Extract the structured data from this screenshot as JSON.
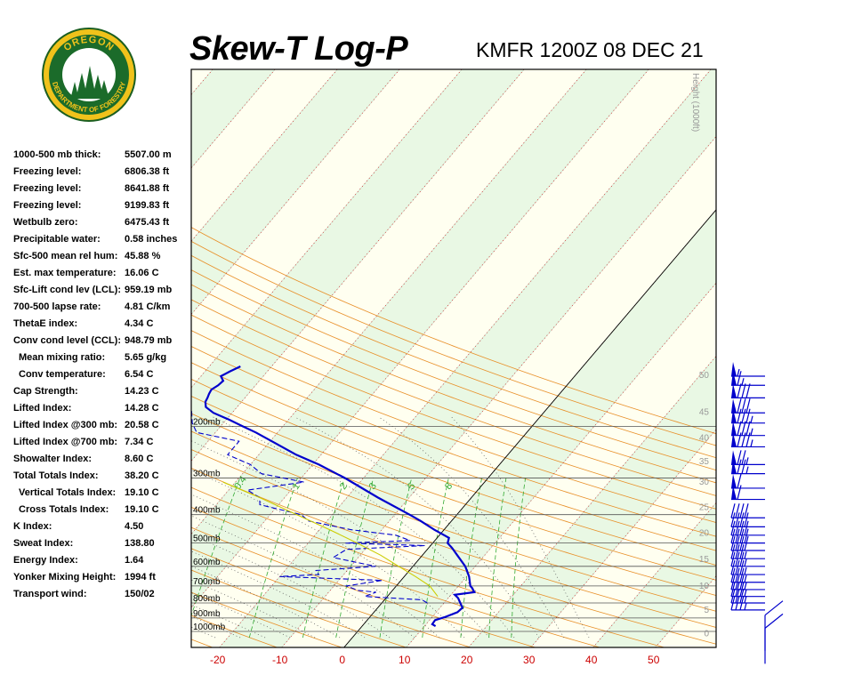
{
  "header": {
    "title": "Skew-T Log-P",
    "station": "KMFR 1200Z 08 DEC 21"
  },
  "logo": {
    "top_text": "OREGON",
    "bottom_text": "DEPARTMENT OF FORESTRY"
  },
  "indices": [
    {
      "label": "1000-500 mb thick:",
      "value": "5507.00 m"
    },
    {
      "label": "Freezing level:",
      "value": "6806.38 ft"
    },
    {
      "label": "Freezing level:",
      "value": "8641.88 ft"
    },
    {
      "label": "Freezing level:",
      "value": "9199.83 ft"
    },
    {
      "label": "Wetbulb zero:",
      "value": "6475.43 ft"
    },
    {
      "label": "Precipitable water:",
      "value": "0.58 inches"
    },
    {
      "label": "Sfc-500 mean rel hum:",
      "value": "45.88 %"
    },
    {
      "label": "Est. max temperature:",
      "value": "16.06 C"
    },
    {
      "label": "Sfc-Lift cond lev (LCL):",
      "value": "959.19 mb"
    },
    {
      "label": "700-500 lapse rate:",
      "value": "4.81 C/km"
    },
    {
      "label": "ThetaE index:",
      "value": "4.34 C"
    },
    {
      "label": "Conv cond level (CCL):",
      "value": "948.79 mb"
    },
    {
      "label": "Mean mixing ratio:",
      "value": "5.65 g/kg",
      "indent": true
    },
    {
      "label": "Conv temperature:",
      "value": "6.54 C",
      "indent": true
    },
    {
      "label": "Cap Strength:",
      "value": "14.23 C"
    },
    {
      "label": "Lifted Index:",
      "value": "14.28 C"
    },
    {
      "label": "Lifted Index @300 mb:",
      "value": "20.58 C"
    },
    {
      "label": "Lifted Index @700 mb:",
      "value": "7.34 C"
    },
    {
      "label": "Showalter Index:",
      "value": "8.60 C"
    },
    {
      "label": "Total Totals Index:",
      "value": "38.20 C"
    },
    {
      "label": "Vertical Totals Index:",
      "value": "19.10 C",
      "indent": true
    },
    {
      "label": "Cross Totals Index:",
      "value": "19.10 C",
      "indent": true
    },
    {
      "label": "K Index:",
      "value": "4.50"
    },
    {
      "label": "Sweat Index:",
      "value": "138.80"
    },
    {
      "label": "Energy Index:",
      "value": "1.64"
    },
    {
      "label": "Yonker Mixing Height:",
      "value": "1994 ft"
    },
    {
      "label": "Transport wind:",
      "value": "150/02"
    }
  ],
  "chart_data": {
    "type": "line",
    "pressure_levels": [
      {
        "p": 200,
        "label": "200mb"
      },
      {
        "p": 300,
        "label": "300mb"
      },
      {
        "p": 400,
        "label": "400mb"
      },
      {
        "p": 500,
        "label": "500mb"
      },
      {
        "p": 600,
        "label": "600mb"
      },
      {
        "p": 700,
        "label": "700mb"
      },
      {
        "p": 800,
        "label": "800mb"
      },
      {
        "p": 900,
        "label": "900mb"
      },
      {
        "p": 1000,
        "label": "1000mb"
      }
    ],
    "temp_ticks": [
      -20,
      -10,
      0,
      10,
      20,
      30,
      40,
      50
    ],
    "height_label": "Height (1000ft)",
    "height_ticks": [
      {
        "label": "50",
        "p": 133
      },
      {
        "label": "45",
        "p": 178
      },
      {
        "label": "40",
        "p": 218
      },
      {
        "label": "35",
        "p": 262
      },
      {
        "label": "30",
        "p": 308
      },
      {
        "label": "25",
        "p": 375
      },
      {
        "label": "20",
        "p": 460
      },
      {
        "label": "15",
        "p": 565
      },
      {
        "label": "10",
        "p": 695
      },
      {
        "label": "5",
        "p": 840
      },
      {
        "label": "0",
        "p": 1010
      }
    ],
    "mixing_ratio_labels": [
      "0.4",
      "1",
      "2",
      "3",
      "5",
      "8"
    ],
    "series": [
      {
        "role": "temperature",
        "color": "#0000cc",
        "points": [
          {
            "p": 960,
            "t": 11.8
          },
          {
            "p": 945,
            "t": 11.0
          },
          {
            "p": 915,
            "t": 10.9
          },
          {
            "p": 895,
            "t": 12.0
          },
          {
            "p": 860,
            "t": 13.4
          },
          {
            "p": 830,
            "t": 13.6
          },
          {
            "p": 800,
            "t": 12.6
          },
          {
            "p": 770,
            "t": 11.6
          },
          {
            "p": 750,
            "t": 10.6
          },
          {
            "p": 735,
            "t": 13.4
          },
          {
            "p": 710,
            "t": 12.4
          },
          {
            "p": 700,
            "t": 11.9
          },
          {
            "p": 650,
            "t": 10.4
          },
          {
            "p": 600,
            "t": 8.4
          },
          {
            "p": 550,
            "t": 5.6
          },
          {
            "p": 520,
            "t": 3.8
          },
          {
            "p": 500,
            "t": 2.4
          },
          {
            "p": 480,
            "t": 1.9
          },
          {
            "p": 450,
            "t": -1.6
          },
          {
            "p": 420,
            "t": -5.0
          },
          {
            "p": 400,
            "t": -7.6
          },
          {
            "p": 350,
            "t": -15.0
          },
          {
            "p": 300,
            "t": -23.0
          },
          {
            "p": 270,
            "t": -29.0
          },
          {
            "p": 250,
            "t": -34.0
          },
          {
            "p": 230,
            "t": -38.5
          },
          {
            "p": 210,
            "t": -43.5
          },
          {
            "p": 200,
            "t": -46.5
          },
          {
            "p": 190,
            "t": -49.5
          },
          {
            "p": 180,
            "t": -53.0
          },
          {
            "p": 172,
            "t": -55.0
          },
          {
            "p": 165,
            "t": -55.8
          },
          {
            "p": 160,
            "t": -56.0
          },
          {
            "p": 155,
            "t": -56.3
          },
          {
            "p": 150,
            "t": -56.5
          },
          {
            "p": 145,
            "t": -56.0
          },
          {
            "p": 140,
            "t": -55.8
          },
          {
            "p": 135,
            "t": -56.8
          },
          {
            "p": 130,
            "t": -56.0
          },
          {
            "p": 125,
            "t": -55.0
          }
        ]
      },
      {
        "role": "dewpoint",
        "color": "#0000cc",
        "dashed": true,
        "points": [
          {
            "p": 800,
            "t": 7.3
          },
          {
            "p": 780,
            "t": 6.0
          },
          {
            "p": 760,
            "t": -3.6
          },
          {
            "p": 735,
            "t": -2.4
          },
          {
            "p": 725,
            "t": -5.5
          },
          {
            "p": 700,
            "t": -8.0
          },
          {
            "p": 670,
            "t": -3.0
          },
          {
            "p": 650,
            "t": -20.0
          },
          {
            "p": 640,
            "t": -14.0
          },
          {
            "p": 620,
            "t": -15.0
          },
          {
            "p": 600,
            "t": -6.0
          },
          {
            "p": 560,
            "t": -14.0
          },
          {
            "p": 525,
            "t": -13.0
          },
          {
            "p": 510,
            "t": -0.9
          },
          {
            "p": 500,
            "t": -14.0
          },
          {
            "p": 490,
            "t": -4.0
          },
          {
            "p": 470,
            "t": -7.0
          },
          {
            "p": 450,
            "t": -15.0
          },
          {
            "p": 420,
            "t": -23.0
          },
          {
            "p": 400,
            "t": -25.0
          },
          {
            "p": 370,
            "t": -33.0
          },
          {
            "p": 350,
            "t": -34.0
          },
          {
            "p": 330,
            "t": -37.0
          },
          {
            "p": 310,
            "t": -29.0
          },
          {
            "p": 290,
            "t": -37.0
          },
          {
            "p": 270,
            "t": -40.0
          },
          {
            "p": 250,
            "t": -45.0
          },
          {
            "p": 225,
            "t": -45.0
          },
          {
            "p": 210,
            "t": -53.0
          },
          {
            "p": 195,
            "t": -55.0
          },
          {
            "p": 175,
            "t": -57.0
          },
          {
            "p": 160,
            "t": -63.0
          },
          {
            "p": 140,
            "t": -68.0
          },
          {
            "p": 128,
            "t": -75.0
          }
        ]
      },
      {
        "role": "parcel",
        "color": "#cccc00",
        "points": [
          {
            "p": 760,
            "t": 8.1
          },
          {
            "p": 700,
            "t": 5.4
          },
          {
            "p": 650,
            "t": 1.8
          },
          {
            "p": 600,
            "t": -2.3
          },
          {
            "p": 550,
            "t": -6.7
          },
          {
            "p": 500,
            "t": -12.1
          },
          {
            "p": 450,
            "t": -18.4
          },
          {
            "p": 400,
            "t": -25.7
          },
          {
            "p": 350,
            "t": -34.0
          },
          {
            "p": 310,
            "t": -42.0
          }
        ]
      }
    ],
    "wind_barbs": [
      {
        "p": 975,
        "dir": 150,
        "spd": 2
      },
      {
        "p": 880,
        "dir": 150,
        "spd": 2
      },
      {
        "p": 845,
        "dir": 270,
        "spd": 35
      },
      {
        "p": 800,
        "dir": 270,
        "spd": 35
      },
      {
        "p": 760,
        "dir": 270,
        "spd": 35
      },
      {
        "p": 720,
        "dir": 270,
        "spd": 35
      },
      {
        "p": 680,
        "dir": 270,
        "spd": 35
      },
      {
        "p": 640,
        "dir": 270,
        "spd": 35
      },
      {
        "p": 600,
        "dir": 270,
        "spd": 35
      },
      {
        "p": 565,
        "dir": 270,
        "spd": 35
      },
      {
        "p": 530,
        "dir": 270,
        "spd": 40
      },
      {
        "p": 500,
        "dir": 270,
        "spd": 40
      },
      {
        "p": 470,
        "dir": 270,
        "spd": 40
      },
      {
        "p": 440,
        "dir": 270,
        "spd": 40
      },
      {
        "p": 410,
        "dir": 270,
        "spd": 40
      },
      {
        "p": 355,
        "dir": 280,
        "spd": 60
      },
      {
        "p": 325,
        "dir": 290,
        "spd": 60
      },
      {
        "p": 290,
        "dir": 300,
        "spd": 75
      },
      {
        "p": 270,
        "dir": 300,
        "spd": 75
      },
      {
        "p": 235,
        "dir": 300,
        "spd": 85
      },
      {
        "p": 215,
        "dir": 300,
        "spd": 85
      },
      {
        "p": 195,
        "dir": 300,
        "spd": 85
      },
      {
        "p": 180,
        "dir": 300,
        "spd": 80
      },
      {
        "p": 160,
        "dir": 295,
        "spd": 80
      },
      {
        "p": 145,
        "dir": 290,
        "spd": 65
      },
      {
        "p": 135,
        "dir": 290,
        "spd": 55
      }
    ]
  }
}
